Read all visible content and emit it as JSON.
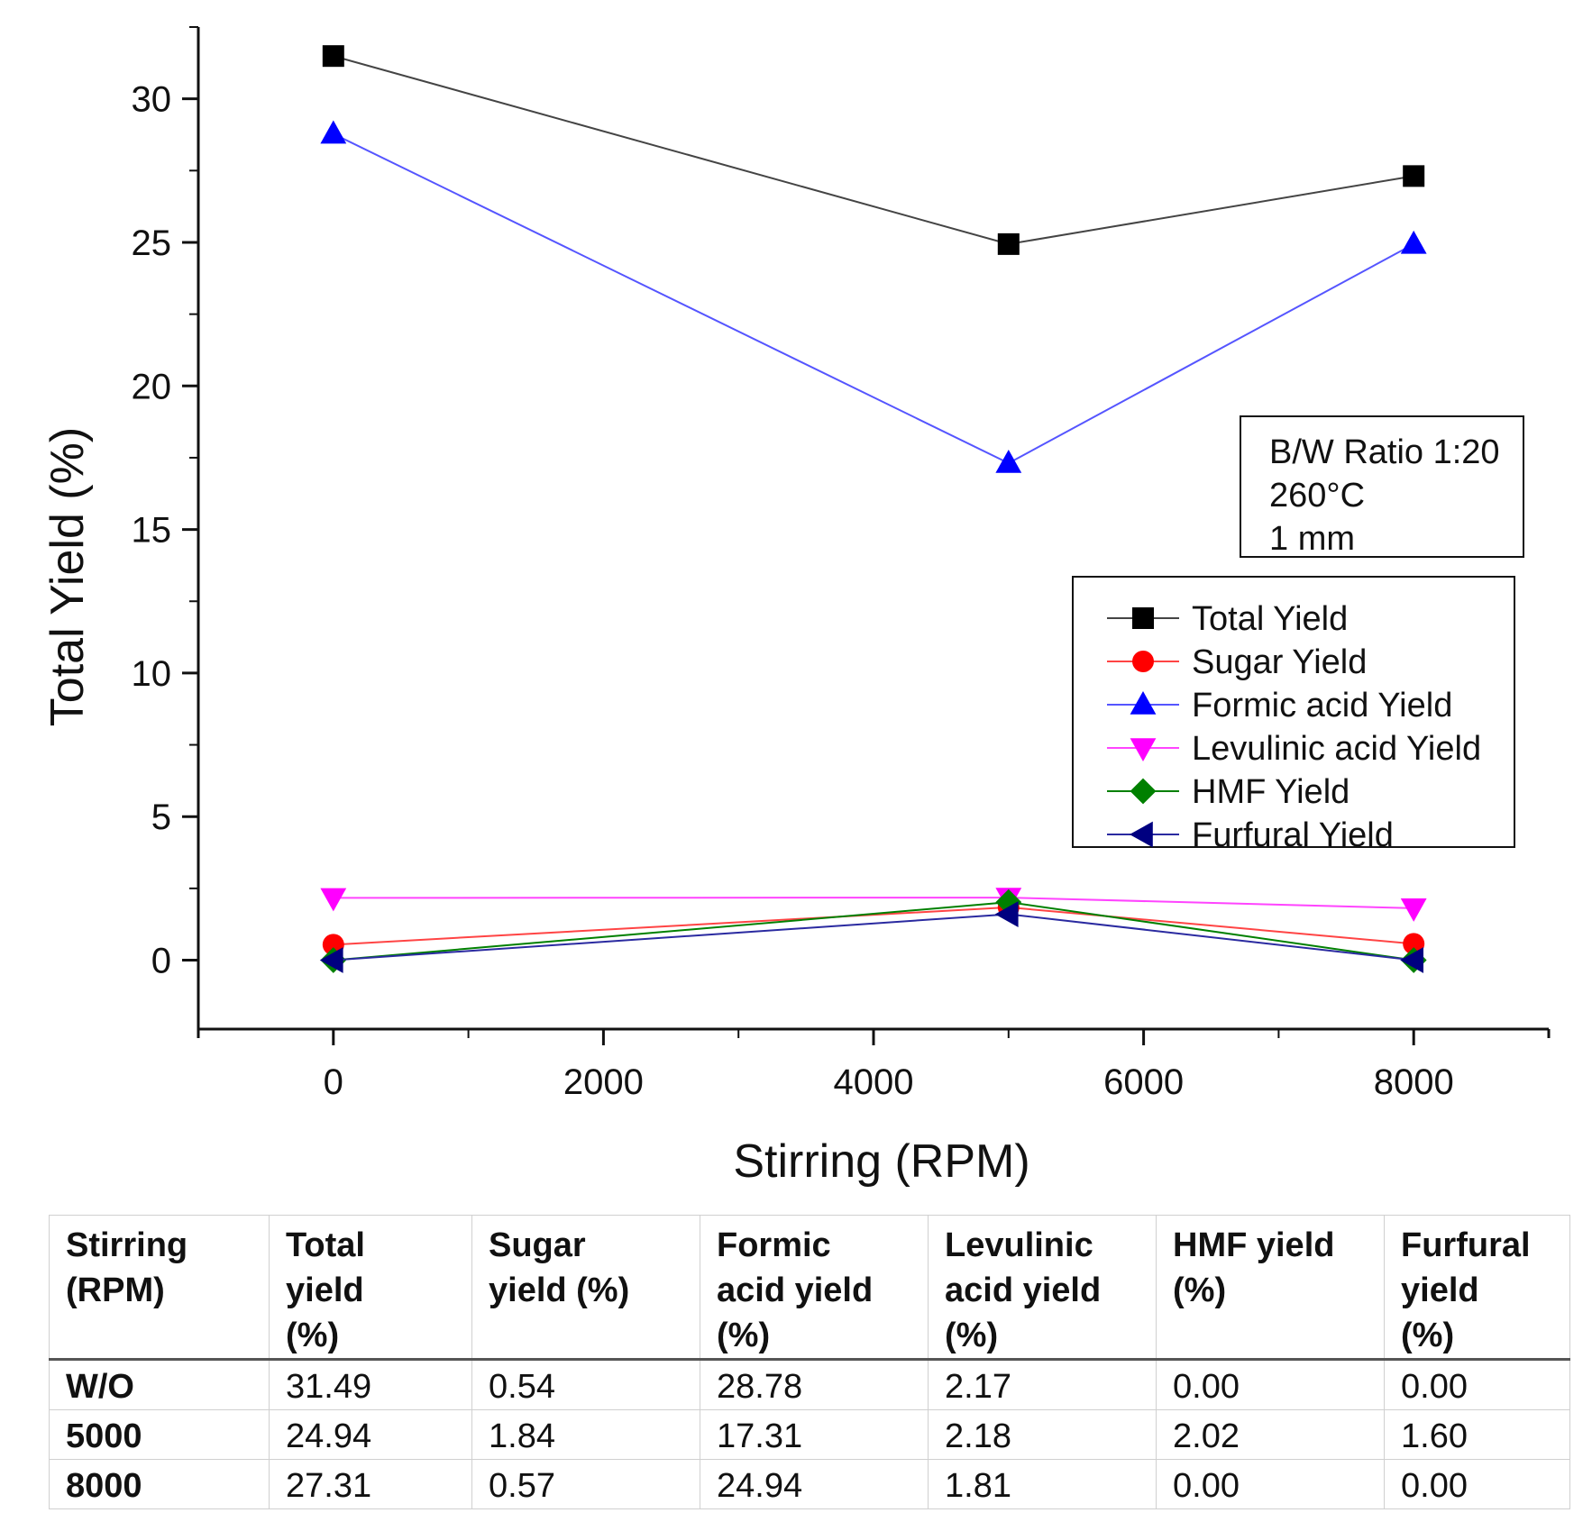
{
  "chart_data": {
    "type": "line",
    "xlabel": "Stirring (RPM)",
    "ylabel": "Total Yield (%)",
    "xlim": [
      -1000,
      9000
    ],
    "ylim": [
      -2.4,
      32.5
    ],
    "xticks": [
      0,
      2000,
      4000,
      6000,
      8000
    ],
    "yticks": [
      0,
      5,
      10,
      15,
      20,
      25,
      30
    ],
    "x": [
      0,
      5000,
      8000
    ],
    "series": [
      {
        "name": "Total Yield",
        "color": "#000000",
        "line": "#444444",
        "marker": "square",
        "values": [
          31.49,
          24.94,
          27.31
        ]
      },
      {
        "name": "Sugar Yield",
        "color": "#ff0000",
        "line": "#ff4444",
        "marker": "circle",
        "values": [
          0.54,
          1.84,
          0.57
        ]
      },
      {
        "name": "Formic acid Yield",
        "color": "#0000ff",
        "line": "#5555ff",
        "marker": "triangle-up",
        "values": [
          28.78,
          17.31,
          24.94
        ]
      },
      {
        "name": "Levulinic acid Yield",
        "color": "#ff00ff",
        "line": "#ff44ff",
        "marker": "triangle-down",
        "values": [
          2.17,
          2.18,
          1.81
        ]
      },
      {
        "name": "HMF Yield",
        "color": "#008000",
        "line": "#008000",
        "marker": "diamond",
        "values": [
          0.0,
          2.02,
          0.0
        ]
      },
      {
        "name": "Furfural Yield",
        "color": "#000080",
        "line": "#2a2aa0",
        "marker": "triangle-left",
        "values": [
          0.0,
          1.6,
          0.0
        ]
      }
    ],
    "annotation": [
      "B/W Ratio 1:20",
      "260°C",
      "1 mm"
    ],
    "legend_position": "right"
  },
  "table": {
    "headers": [
      [
        "Stirring",
        "(RPM)"
      ],
      [
        "Total",
        "yield",
        "(%)"
      ],
      [
        "Sugar",
        "yield (%)"
      ],
      [
        "Formic",
        "acid yield",
        "(%)"
      ],
      [
        "Levulinic",
        "acid yield",
        "(%)"
      ],
      [
        "HMF yield",
        "(%)"
      ],
      [
        "Furfural",
        "yield",
        "(%)"
      ]
    ],
    "rows": [
      [
        "W/O",
        "31.49",
        "0.54",
        "28.78",
        "2.17",
        "0.00",
        "0.00"
      ],
      [
        "5000",
        "24.94",
        "1.84",
        "17.31",
        "2.18",
        "2.02",
        "1.60"
      ],
      [
        "8000",
        "27.31",
        "0.57",
        "24.94",
        "1.81",
        "0.00",
        "0.00"
      ]
    ]
  }
}
